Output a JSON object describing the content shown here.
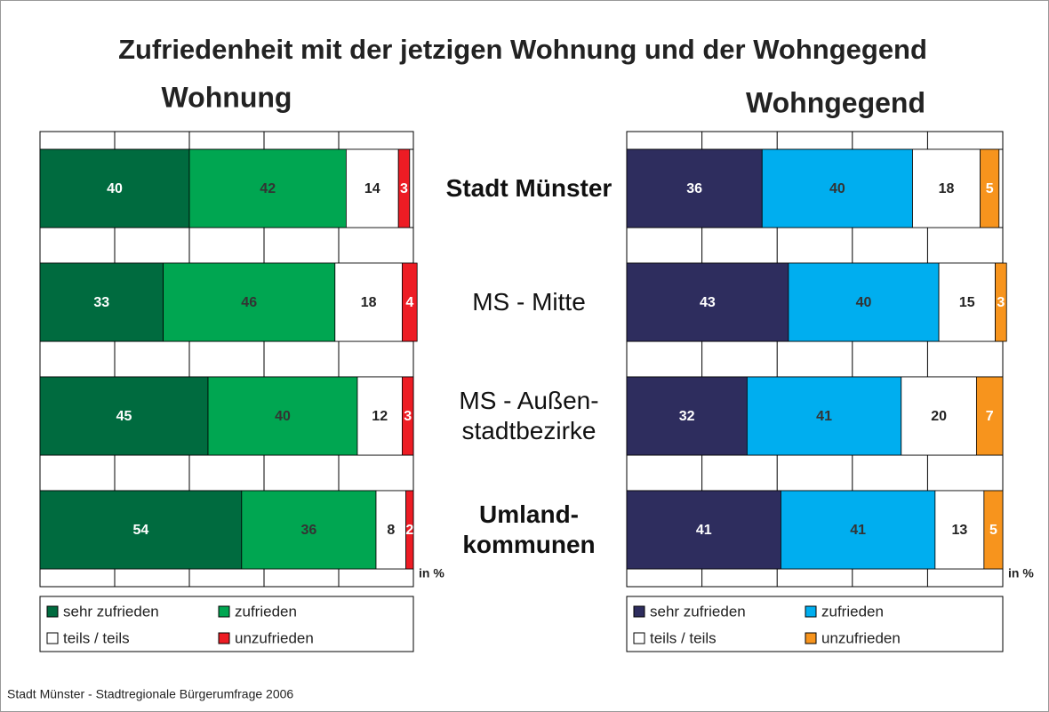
{
  "title": "Zufriedenheit mit der jetzigen Wohnung und der Wohngegend",
  "source": "Stadt Münster - Stadtregionale Bürgerumfrage 2006",
  "categories": [
    "Stadt Münster",
    "MS - Mitte",
    "MS - Außen-\nstadtbezirke",
    "Umland-\nkommunen"
  ],
  "category_bold": [
    true,
    false,
    false,
    true
  ],
  "chart_data": [
    {
      "type": "stacked_bar",
      "title": "Wohnung",
      "unit_label": "in %",
      "xlim": [
        0,
        100
      ],
      "xticks": [
        0,
        20,
        40,
        60,
        80,
        100
      ],
      "grid": true,
      "series": [
        {
          "name": "sehr zufrieden",
          "color": "#006b3f",
          "label_color": "#ffffff",
          "values": [
            40,
            33,
            45,
            54
          ]
        },
        {
          "name": "zufrieden",
          "color": "#00a651",
          "label_color": "#333333",
          "values": [
            42,
            46,
            40,
            36
          ]
        },
        {
          "name": "teils / teils",
          "color": "#ffffff",
          "label_color": "#222222",
          "values": [
            14,
            18,
            12,
            8
          ]
        },
        {
          "name": "unzufrieden",
          "color": "#ed1c24",
          "label_color": "#ffffff",
          "values": [
            3,
            4,
            3,
            2
          ]
        }
      ]
    },
    {
      "type": "stacked_bar",
      "title": "Wohngegend",
      "unit_label": "in %",
      "xlim": [
        0,
        100
      ],
      "xticks": [
        0,
        20,
        40,
        60,
        80,
        100
      ],
      "grid": true,
      "series": [
        {
          "name": "sehr zufrieden",
          "color": "#2e2d5e",
          "label_color": "#ffffff",
          "values": [
            36,
            43,
            32,
            41
          ]
        },
        {
          "name": "zufrieden",
          "color": "#00aeef",
          "label_color": "#333333",
          "values": [
            40,
            40,
            41,
            41
          ]
        },
        {
          "name": "teils / teils",
          "color": "#ffffff",
          "label_color": "#222222",
          "values": [
            18,
            15,
            20,
            13
          ]
        },
        {
          "name": "unzufrieden",
          "color": "#f7941d",
          "label_color": "#ffffff",
          "values": [
            5,
            3,
            7,
            5
          ]
        }
      ]
    }
  ]
}
